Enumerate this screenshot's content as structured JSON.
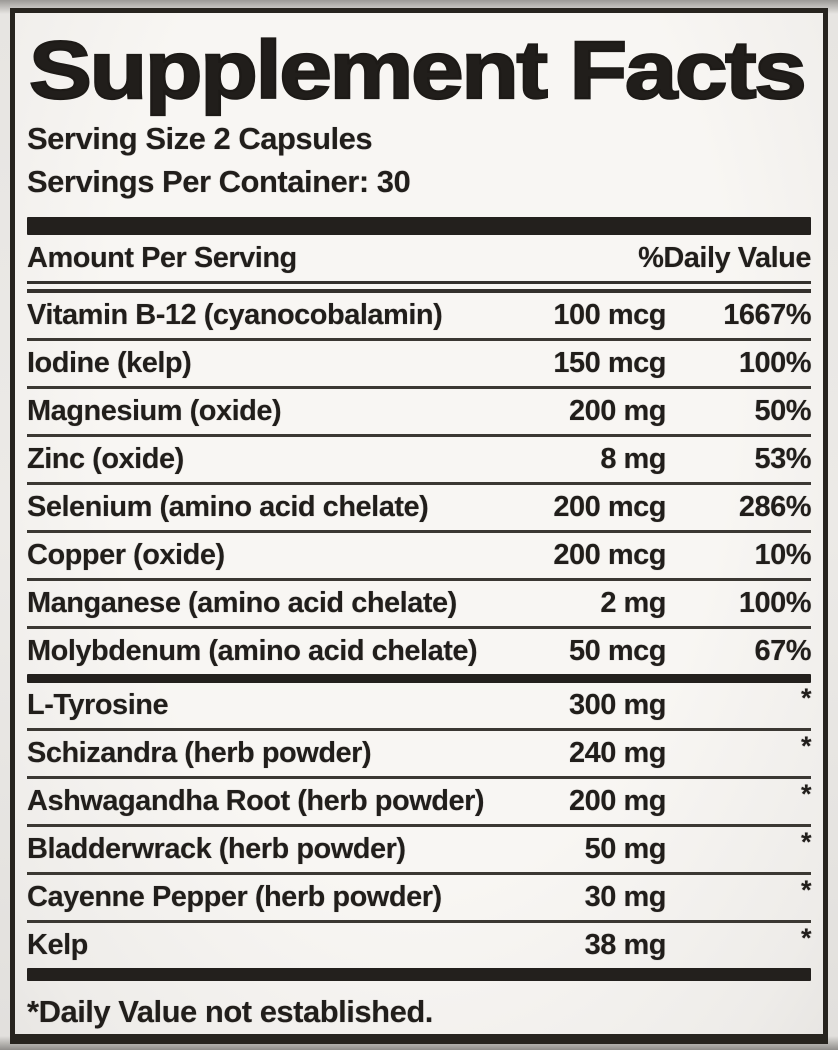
{
  "label": {
    "title": "Supplement Facts",
    "serving_size": "Serving Size 2 Capsules",
    "servings_per_container": "Servings Per Container: 30",
    "columns": {
      "amount_header": "Amount Per Serving",
      "dv_header": "%Daily Value"
    },
    "nutrients": [
      {
        "name": "Vitamin B-12 (cyanocobalamin)",
        "amount": "100 mcg",
        "dv": "1667%"
      },
      {
        "name": "Iodine (kelp)",
        "amount": "150 mcg",
        "dv": "100%"
      },
      {
        "name": "Magnesium (oxide)",
        "amount": "200 mg",
        "dv": "50%"
      },
      {
        "name": "Zinc (oxide)",
        "amount": "8 mg",
        "dv": "53%"
      },
      {
        "name": "Selenium (amino acid chelate)",
        "amount": "200 mcg",
        "dv": "286%"
      },
      {
        "name": "Copper (oxide)",
        "amount": "200 mcg",
        "dv": "10%"
      },
      {
        "name": "Manganese (amino acid chelate)",
        "amount": "2 mg",
        "dv": "100%"
      },
      {
        "name": "Molybdenum (amino acid chelate)",
        "amount": "50 mcg",
        "dv": "67%"
      }
    ],
    "botanicals": [
      {
        "name": "L-Tyrosine",
        "amount": "300 mg",
        "dv": "*"
      },
      {
        "name": "Schizandra (herb powder)",
        "amount": "240 mg",
        "dv": "*"
      },
      {
        "name": "Ashwagandha Root (herb powder)",
        "amount": "200 mg",
        "dv": "*"
      },
      {
        "name": "Bladderwrack (herb powder)",
        "amount": "50 mg",
        "dv": "*"
      },
      {
        "name": "Cayenne Pepper (herb powder)",
        "amount": "30 mg",
        "dv": "*"
      },
      {
        "name": "Kelp",
        "amount": "38 mg",
        "dv": "*"
      }
    ],
    "footnote": "*Daily Value not established.",
    "colors": {
      "ink": "#211e1b",
      "rule": "#3b3833",
      "bar": "#23201d",
      "background": "#f4f2ef",
      "frame": "#27241f"
    }
  }
}
